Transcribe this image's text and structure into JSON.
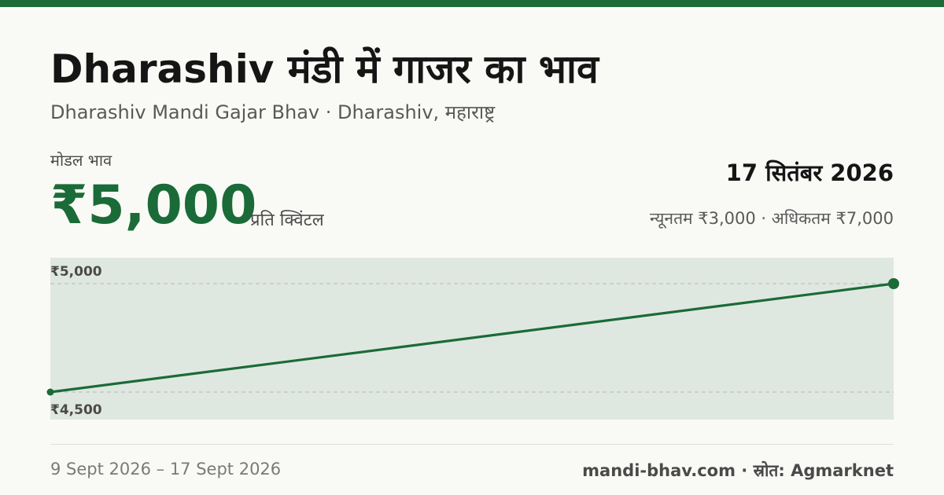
{
  "header": {
    "title": "Dharashiv मंडी में गाजर का भाव",
    "subtitle": "Dharashiv Mandi Gajar Bhav · Dharashiv, महाराष्ट्र"
  },
  "price": {
    "label": "मोडल भाव",
    "value": "₹5,000",
    "unit": "प्रति क्विंटल"
  },
  "summary": {
    "date": "17 सितंबर 2026",
    "range": "न्यूनतम ₹3,000 · अधिकतम ₹7,000"
  },
  "chart_data": {
    "type": "line",
    "x": [
      "9 Sept 2026",
      "17 Sept 2026"
    ],
    "series": [
      {
        "values": [
          4500,
          5000
        ]
      }
    ],
    "ylim": [
      4500,
      5000
    ],
    "y_tick_labels": [
      "₹5,000",
      "₹4,500"
    ],
    "grid": true,
    "line_color": "#1a6b38",
    "area_color": "#dfe8e0"
  },
  "footer": {
    "date_range": "9 Sept 2026 – 17 Sept 2026",
    "source": "mandi-bhav.com · स्रोत: Agmarknet"
  },
  "colors": {
    "accent": "#1e6b3a",
    "price": "#1a6b38"
  }
}
